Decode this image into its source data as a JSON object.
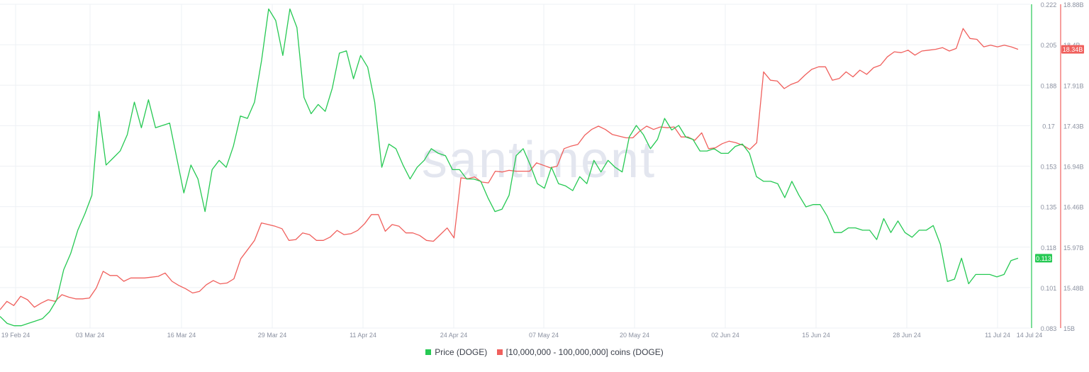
{
  "watermark": "santiment",
  "chart_data": {
    "type": "line",
    "x_tick_labels": [
      "19 Feb 24",
      "03 Mar 24",
      "16 Mar 24",
      "29 Mar 24",
      "11 Apr 24",
      "24 Apr 24",
      "07 May 24",
      "20 May 24",
      "02 Jun 24",
      "15 Jun 24",
      "28 Jun 24",
      "11 Jul 24",
      "14 Jul 24"
    ],
    "y_left_ticks": [
      "0.222",
      "0.205",
      "0.188",
      "0.17",
      "0.153",
      "0.135",
      "0.118",
      "0.101",
      "0.083"
    ],
    "y_left_range": [
      0.083,
      0.222
    ],
    "y_right_ticks": [
      "18.88B",
      "18.4B",
      "17.91B",
      "17.43B",
      "16.94B",
      "16.46B",
      "15.97B",
      "15.48B",
      "15B"
    ],
    "y_right_range_billions": [
      15.0,
      18.88
    ],
    "grid": true,
    "legend_position": "bottom-center",
    "series": [
      {
        "name": "Price (DOGE)",
        "axis": "left",
        "color": "#26c953",
        "last_value_label": "0.113",
        "values": [
          0.088,
          0.085,
          0.084,
          0.084,
          0.085,
          0.086,
          0.087,
          0.09,
          0.095,
          0.108,
          0.115,
          0.125,
          0.132,
          0.14,
          0.176,
          0.153,
          0.156,
          0.159,
          0.166,
          0.18,
          0.169,
          0.181,
          0.169,
          0.17,
          0.171,
          0.156,
          0.141,
          0.153,
          0.147,
          0.133,
          0.151,
          0.155,
          0.152,
          0.161,
          0.174,
          0.173,
          0.18,
          0.198,
          0.22,
          0.215,
          0.2,
          0.22,
          0.212,
          0.182,
          0.175,
          0.179,
          0.176,
          0.186,
          0.201,
          0.202,
          0.19,
          0.2,
          0.195,
          0.18,
          0.152,
          0.162,
          0.16,
          0.153,
          0.147,
          0.152,
          0.155,
          0.16,
          0.158,
          0.157,
          0.151,
          0.151,
          0.147,
          0.147,
          0.146,
          0.139,
          0.133,
          0.134,
          0.14,
          0.157,
          0.16,
          0.153,
          0.145,
          0.143,
          0.152,
          0.145,
          0.144,
          0.142,
          0.148,
          0.145,
          0.155,
          0.15,
          0.155,
          0.152,
          0.15,
          0.165,
          0.17,
          0.166,
          0.16,
          0.164,
          0.173,
          0.168,
          0.17,
          0.165,
          0.164,
          0.159,
          0.159,
          0.16,
          0.158,
          0.158,
          0.161,
          0.162,
          0.158,
          0.148,
          0.146,
          0.146,
          0.145,
          0.139,
          0.146,
          0.14,
          0.135,
          0.136,
          0.136,
          0.131,
          0.124,
          0.124,
          0.126,
          0.126,
          0.125,
          0.125,
          0.121,
          0.13,
          0.124,
          0.129,
          0.124,
          0.122,
          0.125,
          0.125,
          0.127,
          0.119,
          0.103,
          0.104,
          0.113,
          0.102,
          0.106,
          0.106,
          0.106,
          0.105,
          0.106,
          0.112,
          0.113
        ]
      },
      {
        "name": "[10,000,000 - 100,000,000] coins (DOGE)",
        "axis": "right",
        "color": "#f0605d",
        "last_value_label": "18.34B",
        "values_billions": [
          15.22,
          15.32,
          15.27,
          15.38,
          15.34,
          15.25,
          15.3,
          15.34,
          15.32,
          15.4,
          15.37,
          15.35,
          15.35,
          15.36,
          15.48,
          15.68,
          15.63,
          15.63,
          15.56,
          15.6,
          15.6,
          15.6,
          15.61,
          15.62,
          15.66,
          15.56,
          15.51,
          15.47,
          15.42,
          15.44,
          15.52,
          15.57,
          15.53,
          15.54,
          15.59,
          15.83,
          15.94,
          16.05,
          16.26,
          16.24,
          16.22,
          16.19,
          16.05,
          16.06,
          16.14,
          16.12,
          16.05,
          16.05,
          16.09,
          16.17,
          16.12,
          16.13,
          16.17,
          16.25,
          16.36,
          16.36,
          16.16,
          16.24,
          16.22,
          16.14,
          16.14,
          16.11,
          16.05,
          16.04,
          16.12,
          16.2,
          16.08,
          16.8,
          16.79,
          16.81,
          16.75,
          16.74,
          16.88,
          16.87,
          16.89,
          16.88,
          16.88,
          16.88,
          16.98,
          16.95,
          16.92,
          16.94,
          17.15,
          17.18,
          17.2,
          17.31,
          17.38,
          17.42,
          17.38,
          17.32,
          17.3,
          17.28,
          17.28,
          17.36,
          17.42,
          17.38,
          17.41,
          17.4,
          17.41,
          17.29,
          17.29,
          17.25,
          17.34,
          17.15,
          17.16,
          17.21,
          17.24,
          17.22,
          17.19,
          17.14,
          17.22,
          18.07,
          17.97,
          17.96,
          17.87,
          17.92,
          17.95,
          18.03,
          18.1,
          18.13,
          18.13,
          17.97,
          17.99,
          18.07,
          18.01,
          18.09,
          18.04,
          18.12,
          18.15,
          18.25,
          18.31,
          18.3,
          18.33,
          18.27,
          18.32,
          18.33,
          18.34,
          18.36,
          18.32,
          18.35,
          18.59,
          18.47,
          18.46,
          18.37,
          18.39,
          18.37,
          18.39,
          18.37,
          18.34
        ]
      }
    ]
  }
}
